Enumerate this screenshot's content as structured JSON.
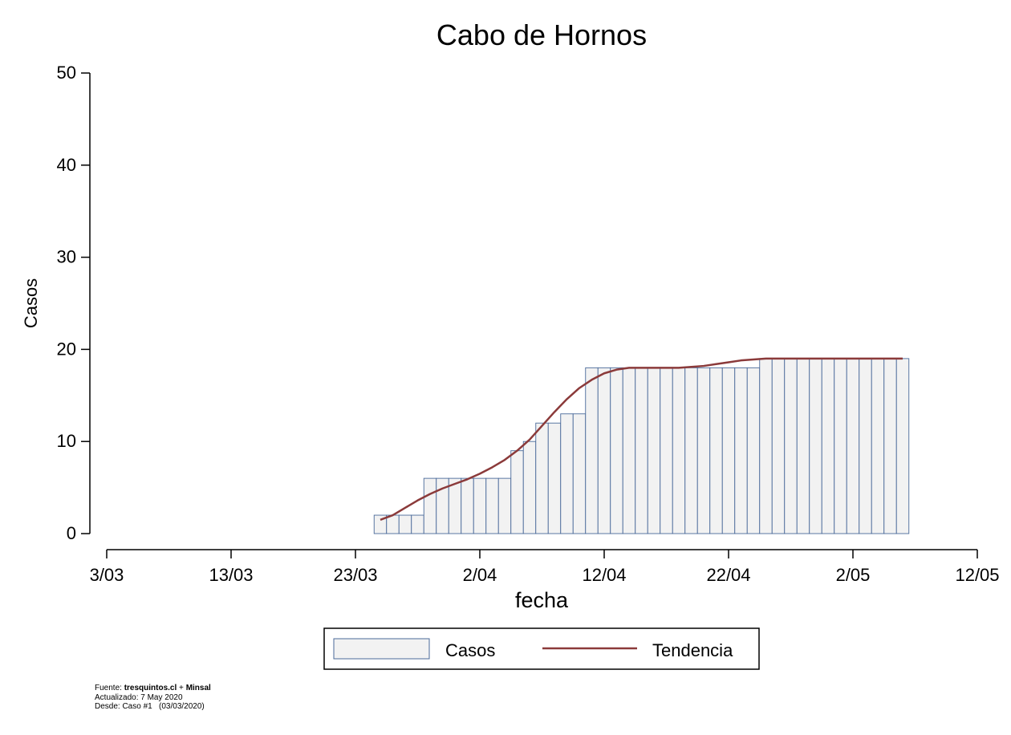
{
  "chart_data": {
    "type": "bar",
    "title": "Cabo de Hornos",
    "xlabel": "fecha",
    "ylabel": "Casos",
    "ylim": [
      0,
      50
    ],
    "yticks": [
      0,
      10,
      20,
      30,
      40,
      50
    ],
    "xlim": [
      "2020-03-03",
      "2020-05-12"
    ],
    "xticks": [
      {
        "date": "2020-03-03",
        "label": "3/03"
      },
      {
        "date": "2020-03-13",
        "label": "13/03"
      },
      {
        "date": "2020-03-23",
        "label": "23/03"
      },
      {
        "date": "2020-04-02",
        "label": "2/04"
      },
      {
        "date": "2020-04-12",
        "label": "12/04"
      },
      {
        "date": "2020-04-22",
        "label": "22/04"
      },
      {
        "date": "2020-05-02",
        "label": "2/05"
      },
      {
        "date": "2020-05-12",
        "label": "12/05"
      }
    ],
    "dates": [
      "2020-03-25",
      "2020-03-26",
      "2020-03-27",
      "2020-03-28",
      "2020-03-29",
      "2020-03-30",
      "2020-03-31",
      "2020-04-01",
      "2020-04-02",
      "2020-04-03",
      "2020-04-04",
      "2020-04-05",
      "2020-04-06",
      "2020-04-07",
      "2020-04-08",
      "2020-04-09",
      "2020-04-10",
      "2020-04-11",
      "2020-04-12",
      "2020-04-13",
      "2020-04-14",
      "2020-04-15",
      "2020-04-16",
      "2020-04-17",
      "2020-04-18",
      "2020-04-19",
      "2020-04-20",
      "2020-04-21",
      "2020-04-22",
      "2020-04-23",
      "2020-04-24",
      "2020-04-25",
      "2020-04-26",
      "2020-04-27",
      "2020-04-28",
      "2020-04-29",
      "2020-04-30",
      "2020-05-01",
      "2020-05-02",
      "2020-05-03",
      "2020-05-04",
      "2020-05-05",
      "2020-05-06"
    ],
    "series": [
      {
        "name": "Casos",
        "kind": "bar",
        "color": "#f2f2f2",
        "edge": "#4a6a9a",
        "values": [
          2,
          2,
          2,
          2,
          6,
          6,
          6,
          6,
          6,
          6,
          6,
          9,
          10,
          12,
          12,
          13,
          13,
          18,
          18,
          18,
          18,
          18,
          18,
          18,
          18,
          18,
          18,
          18,
          18,
          18,
          18,
          19,
          19,
          19,
          19,
          19,
          19,
          19,
          19,
          19,
          19,
          19,
          19
        ]
      },
      {
        "name": "Tendencia",
        "kind": "line",
        "color": "#8b3a3a",
        "values": [
          1.5,
          2.0,
          2.8,
          3.6,
          4.3,
          4.9,
          5.4,
          5.9,
          6.5,
          7.2,
          8.0,
          9.0,
          10.2,
          11.7,
          13.2,
          14.6,
          15.8,
          16.7,
          17.4,
          17.8,
          18.0,
          18.0,
          18.0,
          18.0,
          18.0,
          18.1,
          18.2,
          18.4,
          18.6,
          18.8,
          18.9,
          19.0,
          19.0,
          19.0,
          19.0,
          19.0,
          19.0,
          19.0,
          19.0,
          19.0,
          19.0,
          19.0,
          19.0
        ]
      }
    ],
    "legend_position": "bottom",
    "grid": false
  },
  "footer": {
    "source_prefix": "Fuente: ",
    "source_site": "tresquintos.cl",
    "source_plus": " + ",
    "source_org": "Minsal",
    "updated": "Actualizado: 7 May 2020",
    "since": "Desde: Caso #1   (03/03/2020)"
  }
}
